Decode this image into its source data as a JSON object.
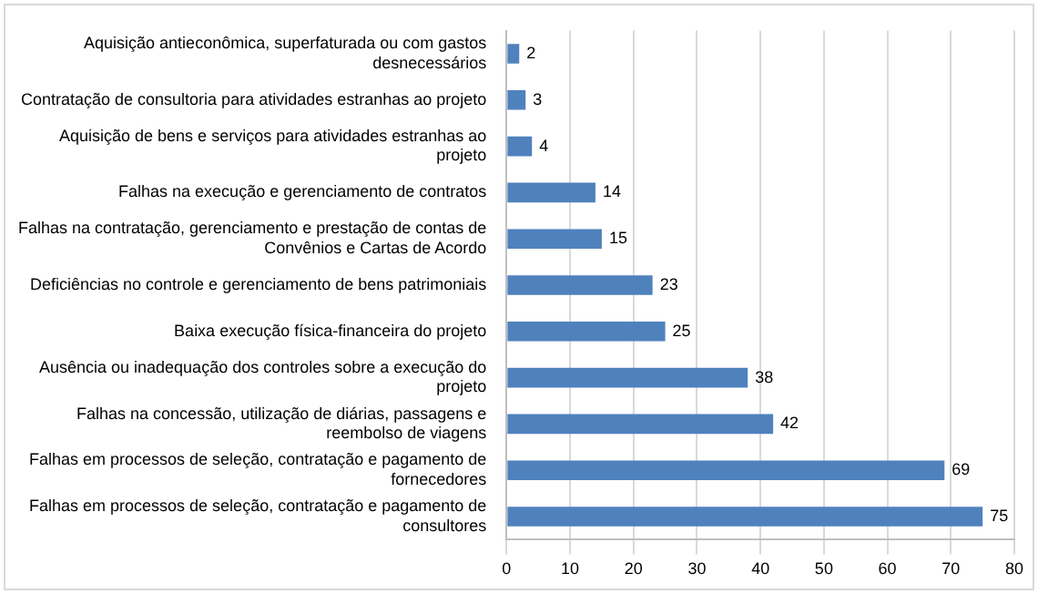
{
  "chart_data": {
    "type": "bar",
    "orientation": "horizontal",
    "categories": [
      "Aquisição antieconômica, superfaturada ou com gastos desnecessários",
      "Contratação de consultoria para atividades estranhas ao projeto",
      "Aquisição de bens e serviços para atividades estranhas ao projeto",
      "Falhas na execução e gerenciamento de contratos",
      "Falhas na contratação, gerenciamento e prestação de contas de Convênios e Cartas de Acordo",
      "Deficiências no controle e gerenciamento de bens patrimoniais",
      "Baixa execução física-financeira do projeto",
      "Ausência ou inadequação dos controles sobre a execução do projeto",
      "Falhas na concessão, utilização de diárias, passagens e reembolso de viagens",
      "Falhas em processos de seleção, contratação e pagamento de fornecedores",
      "Falhas em processos de seleção, contratação e pagamento de consultores"
    ],
    "values": [
      2,
      3,
      4,
      14,
      15,
      23,
      25,
      38,
      42,
      69,
      75
    ],
    "color": "#4f81bd",
    "xlim": [
      0,
      80
    ],
    "xticks": [
      0,
      10,
      20,
      30,
      40,
      50,
      60,
      70,
      80
    ],
    "grid": "x",
    "data_labels": true,
    "legend": false
  }
}
